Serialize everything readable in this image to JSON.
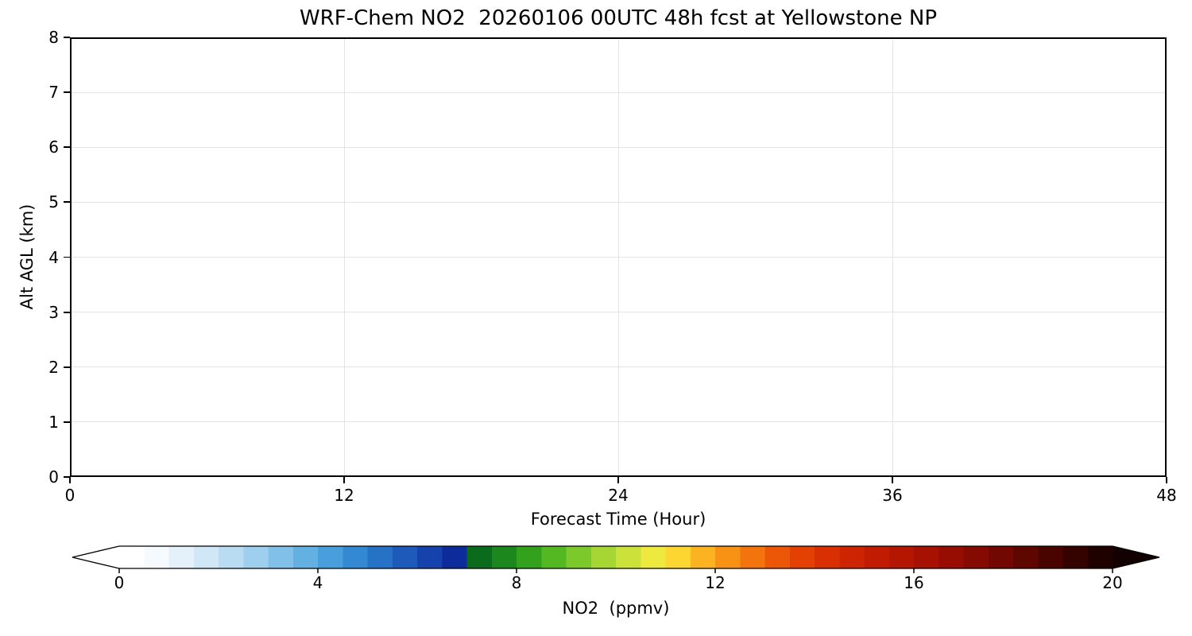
{
  "chart_data": {
    "type": "heatmap",
    "title": "WRF-Chem NO2  20260106 00UTC 48h fcst at Yellowstone NP",
    "xlabel": "Forecast Time (Hour)",
    "ylabel": "Alt AGL (km)",
    "xlim": [
      0,
      48
    ],
    "ylim": [
      0,
      8
    ],
    "x_ticks": [
      0,
      12,
      24,
      36,
      48
    ],
    "y_ticks": [
      0,
      1,
      2,
      3,
      4,
      5,
      6,
      7,
      8
    ],
    "grid": true,
    "values_summary": "cross-section blank: all NO2 values at/below lowest color level (white, ~0 ppmv) for all forecast hours 0-48 and altitudes 0-8 km",
    "colorbar": {
      "label": "NO2  (ppmv)",
      "range": [
        0,
        20
      ],
      "ticks": [
        0,
        4,
        8,
        12,
        16,
        20
      ],
      "extend": "both",
      "under_color": "#ffffff",
      "over_color": "#120100",
      "segment_colors": [
        "#ffffff",
        "#f4fafd",
        "#e4f1fa",
        "#d0e7f7",
        "#b9dcf3",
        "#9ecfee",
        "#81c0e9",
        "#63b0e3",
        "#489fdb",
        "#3389d2",
        "#2672c7",
        "#1d5aba",
        "#1542ac",
        "#0d2c9c",
        "#0a6b1c",
        "#1c871c",
        "#33a11c",
        "#54b822",
        "#7cc92b",
        "#a5d633",
        "#cce23a",
        "#eee93e",
        "#fdd631",
        "#fcb322",
        "#f89214",
        "#f3740c",
        "#ec5707",
        "#e34004",
        "#d92f03",
        "#cd2402",
        "#c11c02",
        "#b41601",
        "#a71101",
        "#970d01",
        "#850a01",
        "#720801",
        "#5e0600",
        "#490400",
        "#340300",
        "#1f0200"
      ]
    }
  }
}
